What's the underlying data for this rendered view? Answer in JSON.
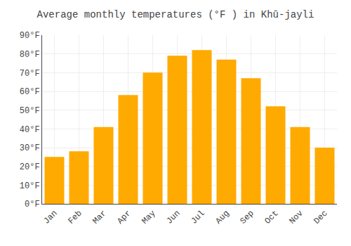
{
  "chart_data": {
    "type": "bar",
    "title": "Average monthly temperatures (°F ) in Khū-jayli",
    "categories": [
      "Jan",
      "Feb",
      "Mar",
      "Apr",
      "May",
      "Jun",
      "Jul",
      "Aug",
      "Sep",
      "Oct",
      "Nov",
      "Dec"
    ],
    "values": [
      25,
      28,
      41,
      58,
      70,
      79,
      82,
      77,
      67,
      52,
      41,
      30
    ],
    "color": "#FFAA00",
    "ylim": [
      0,
      90
    ],
    "yticks": [
      {
        "value": 0,
        "label": "0°F"
      },
      {
        "value": 10,
        "label": "10°F"
      },
      {
        "value": 20,
        "label": "20°F"
      },
      {
        "value": 30,
        "label": "30°F"
      },
      {
        "value": 40,
        "label": "40°F"
      },
      {
        "value": 50,
        "label": "50°F"
      },
      {
        "value": 60,
        "label": "60°F"
      },
      {
        "value": 70,
        "label": "70°F"
      },
      {
        "value": 80,
        "label": "80°F"
      },
      {
        "value": 90,
        "label": "90°F"
      }
    ],
    "grid": true
  }
}
